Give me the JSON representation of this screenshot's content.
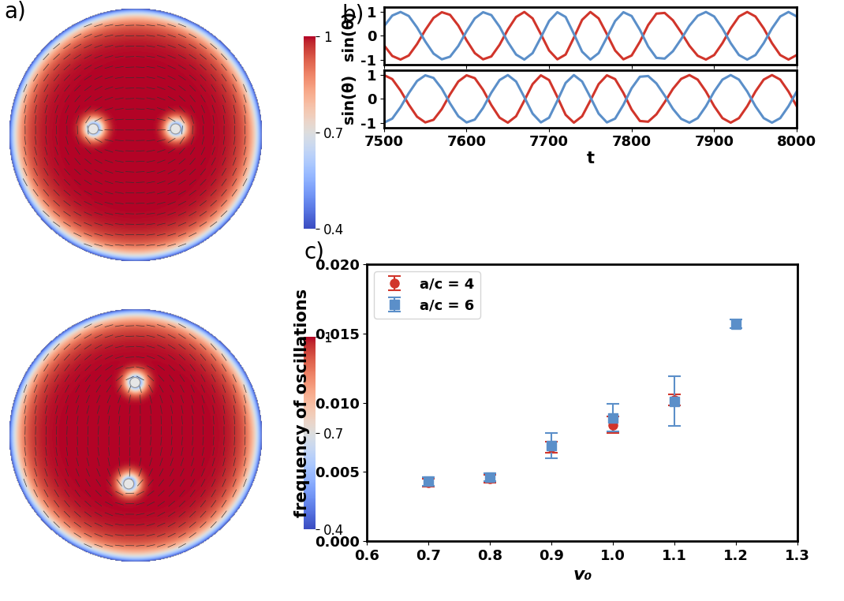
{
  "chart_data": [
    {
      "type": "image",
      "panel_label": "a)",
      "colorbar": {
        "range": [
          0.4,
          1
        ],
        "ticks": [
          0.4,
          0.7,
          1
        ]
      }
    },
    {
      "type": "image",
      "colorbar": {
        "range": [
          0.4,
          1
        ],
        "ticks": [
          0.4,
          0.7,
          1
        ]
      }
    },
    {
      "type": "line",
      "panel_label": "b)",
      "y_label": "sin(θ)",
      "x": [
        7500,
        7510,
        7520,
        7530,
        7540,
        7550,
        7560,
        7570,
        7580,
        7590,
        7600,
        7610,
        7620,
        7630,
        7640,
        7650,
        7660,
        7670,
        7680,
        7690,
        7700,
        7710,
        7720,
        7730,
        7740,
        7750,
        7760,
        7770,
        7780,
        7790,
        7800,
        7810,
        7820,
        7830,
        7840,
        7850,
        7860,
        7870,
        7880,
        7890,
        7900,
        7910,
        7920,
        7930,
        7940,
        7950,
        7960,
        7970,
        7980,
        7990,
        8000
      ],
      "series": [
        {
          "color": "#d1352b",
          "values": [
            -0.4,
            -0.85,
            -1,
            -0.83,
            -0.35,
            0.24,
            0.75,
            0.99,
            0.88,
            0.43,
            -0.19,
            -0.73,
            -0.99,
            -0.87,
            -0.38,
            0.26,
            0.79,
            1,
            0.73,
            0.07,
            -0.62,
            -0.99,
            -0.79,
            -0.08,
            0.67,
            1,
            0.73,
            0.07,
            -0.62,
            -0.99,
            -0.83,
            -0.25,
            0.45,
            0.93,
            0.96,
            0.65,
            0.14,
            -0.42,
            -0.84,
            -1,
            -0.81,
            -0.31,
            0.31,
            0.81,
            1,
            0.81,
            0.31,
            -0.31,
            -0.81,
            -1,
            -0.81
          ]
        },
        {
          "color": "#5b8fc9",
          "values": [
            0.4,
            0.85,
            1,
            0.83,
            0.35,
            -0.24,
            -0.75,
            -0.99,
            -0.88,
            -0.43,
            0.19,
            0.73,
            0.99,
            0.87,
            0.38,
            -0.26,
            -0.79,
            -1,
            -0.73,
            -0.07,
            0.62,
            0.99,
            0.79,
            0.08,
            -0.67,
            -1,
            -0.73,
            -0.07,
            0.62,
            0.99,
            0.83,
            0.25,
            -0.45,
            -0.93,
            -0.96,
            -0.65,
            -0.14,
            0.42,
            0.84,
            1,
            0.81,
            0.31,
            -0.31,
            -0.81,
            -1,
            -0.81,
            -0.31,
            0.31,
            0.81,
            1,
            0.81
          ]
        }
      ],
      "xlim": [
        7500,
        8000
      ],
      "xticks": [
        7500,
        7600,
        7700,
        7800,
        7900,
        8000
      ],
      "ylim": [
        -1.2,
        1.2
      ],
      "yticks": [
        -1,
        0,
        1
      ],
      "tick_labels": "y"
    },
    {
      "type": "line",
      "y_label": "sin(θ)",
      "x_label": "t",
      "x": [
        7500,
        7510,
        7520,
        7530,
        7540,
        7550,
        7560,
        7570,
        7580,
        7590,
        7600,
        7610,
        7620,
        7630,
        7640,
        7650,
        7660,
        7670,
        7680,
        7690,
        7700,
        7710,
        7720,
        7730,
        7740,
        7750,
        7760,
        7770,
        7780,
        7790,
        7800,
        7810,
        7820,
        7830,
        7840,
        7850,
        7860,
        7870,
        7880,
        7890,
        7900,
        7910,
        7920,
        7930,
        7940,
        7950,
        7960,
        7970,
        7980,
        7990,
        8000
      ],
      "series": [
        {
          "color": "#d1352b",
          "values": [
            1,
            0.83,
            0.35,
            -0.24,
            -0.75,
            -0.99,
            -0.88,
            -0.43,
            0.19,
            0.73,
            0.99,
            0.87,
            0.38,
            -0.26,
            -0.79,
            -1,
            -0.73,
            -0.07,
            0.62,
            0.99,
            0.79,
            0.08,
            -0.67,
            -1,
            -0.73,
            -0.07,
            0.62,
            0.99,
            0.83,
            0.25,
            -0.45,
            -0.93,
            -0.96,
            -0.65,
            -0.14,
            0.42,
            0.84,
            1,
            0.81,
            0.31,
            -0.31,
            -0.81,
            -1,
            -0.81,
            -0.31,
            0.31,
            0.81,
            1,
            0.81,
            0.31,
            -0.31
          ]
        },
        {
          "color": "#5b8fc9",
          "values": [
            -1,
            -0.83,
            -0.35,
            0.24,
            0.75,
            0.99,
            0.88,
            0.43,
            -0.19,
            -0.73,
            -0.99,
            -0.87,
            -0.38,
            0.26,
            0.79,
            1,
            0.73,
            0.07,
            -0.62,
            -0.99,
            -0.79,
            -0.08,
            0.67,
            1,
            0.73,
            0.07,
            -0.62,
            -0.99,
            -0.83,
            -0.25,
            0.45,
            0.93,
            0.96,
            0.65,
            0.14,
            -0.42,
            -0.84,
            -1,
            -0.81,
            -0.31,
            0.31,
            0.81,
            1,
            0.81,
            0.31,
            -0.31,
            -0.81,
            -1,
            -0.81,
            -0.31,
            0.31
          ]
        }
      ],
      "xlim": [
        7500,
        8000
      ],
      "xticks": [
        7500,
        7600,
        7700,
        7800,
        7900,
        8000
      ],
      "ylim": [
        -1.2,
        1.2
      ],
      "yticks": [
        -1,
        0,
        1
      ]
    },
    {
      "type": "scatter",
      "panel_label": "c)",
      "x_label": "v₀",
      "y_label": "frequency of oscillations",
      "series": [
        {
          "name": "a/c = 4",
          "color": "#d1352b",
          "marker": "circle",
          "x": [
            0.7,
            0.8,
            0.9,
            1.0,
            1.1
          ],
          "values": [
            0.0042,
            0.0045,
            0.0068,
            0.0084,
            0.0102
          ],
          "errors": [
            0.0003,
            0.0003,
            0.0004,
            0.0006,
            0.0004
          ]
        },
        {
          "name": "a/c = 6",
          "color": "#5b8fc9",
          "marker": "square",
          "x": [
            0.7,
            0.8,
            0.9,
            1.0,
            1.1,
            1.2
          ],
          "values": [
            0.0043,
            0.0046,
            0.0069,
            0.0089,
            0.0101,
            0.0157
          ],
          "errors": [
            0.0003,
            0.0003,
            0.0009,
            0.001,
            0.0018,
            0.0003
          ]
        }
      ],
      "xlim": [
        0.6,
        1.3
      ],
      "xticks": [
        0.6,
        0.7,
        0.8,
        0.9,
        1.0,
        1.1,
        1.2,
        1.3
      ],
      "ylim": [
        0,
        0.02
      ],
      "yticks": [
        {
          "value": 0,
          "label": "0.000"
        },
        {
          "value": 0.005,
          "label": "0.005"
        },
        {
          "value": 0.01,
          "label": "0.010"
        },
        {
          "value": 0.015,
          "label": "0.015"
        },
        {
          "value": 0.02,
          "label": "0.020"
        }
      ],
      "legend": "upper left"
    }
  ]
}
